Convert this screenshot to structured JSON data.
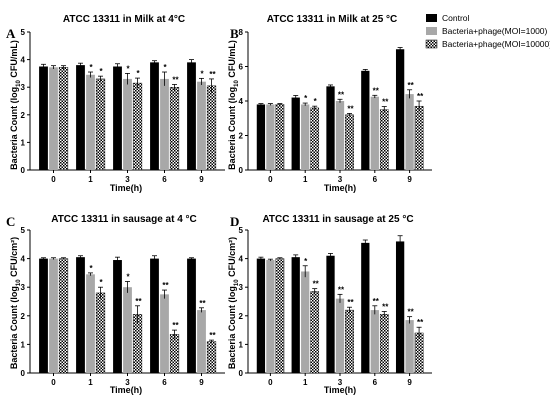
{
  "colors": {
    "control": "#000000",
    "phage_1000": "#a8a8a8",
    "phage_10000": "checker"
  },
  "legend": [
    {
      "label": "Control",
      "style": "control"
    },
    {
      "label": "Bacteria+phage(MOI=1000)",
      "style": "phage_1000"
    },
    {
      "label": "Bacteria+phage(MOI=10000)",
      "style": "phage_10000"
    }
  ],
  "chart_data": [
    {
      "type": "bar",
      "panel_label": "A",
      "title": "ATCC 13311 in Milk at 4°C",
      "xlabel": "Time(h)",
      "ylabel_main": "Bacteria Count (log",
      "ylabel_sub": "10",
      "ylabel_unit": " CFU/mL)",
      "categories": [
        "0",
        "1",
        "3",
        "6",
        "9"
      ],
      "ylim": [
        0,
        5
      ],
      "yticks": [
        0,
        1,
        2,
        3,
        4,
        5
      ],
      "series": [
        {
          "name": "Control",
          "values": [
            3.75,
            3.8,
            3.75,
            3.9,
            3.9
          ],
          "errors": [
            0.08,
            0.07,
            0.1,
            0.06,
            0.1
          ],
          "sig": [
            "",
            "",
            "",
            "",
            ""
          ]
        },
        {
          "name": "Bacteria+phage(MOI=1000)",
          "values": [
            3.72,
            3.45,
            3.3,
            3.3,
            3.2
          ],
          "errors": [
            0.06,
            0.1,
            0.2,
            0.25,
            0.12
          ],
          "sig": [
            "",
            "*",
            "*",
            "*",
            "*"
          ]
        },
        {
          "name": "Bacteria+phage(MOI=10000)",
          "values": [
            3.72,
            3.3,
            3.15,
            3.0,
            3.05
          ],
          "errors": [
            0.06,
            0.1,
            0.18,
            0.1,
            0.25
          ],
          "sig": [
            "",
            "*",
            "*",
            "**",
            "**"
          ]
        }
      ]
    },
    {
      "type": "bar",
      "panel_label": "B",
      "title": "ATCC 13311 in Milk at 25 °C",
      "xlabel": "Time(h)",
      "ylabel_main": "Bacteria Count (log",
      "ylabel_sub": "10",
      "ylabel_unit": " CFU/mL)",
      "categories": [
        "0",
        "1",
        "3",
        "6",
        "9"
      ],
      "ylim": [
        0,
        8
      ],
      "yticks": [
        0,
        2,
        4,
        6,
        8
      ],
      "series": [
        {
          "name": "Control",
          "values": [
            3.8,
            4.2,
            4.85,
            5.75,
            7.0
          ],
          "errors": [
            0.05,
            0.12,
            0.08,
            0.08,
            0.1
          ],
          "sig": [
            "",
            "",
            "",
            "",
            ""
          ]
        },
        {
          "name": "Bacteria+phage(MOI=1000)",
          "values": [
            3.8,
            3.8,
            4.0,
            4.25,
            4.4
          ],
          "errors": [
            0.05,
            0.08,
            0.1,
            0.08,
            0.25
          ],
          "sig": [
            "",
            "*",
            "**",
            "**",
            "**"
          ]
        },
        {
          "name": "Bacteria+phage(MOI=10000)",
          "values": [
            3.8,
            3.6,
            3.2,
            3.5,
            3.7
          ],
          "errors": [
            0.05,
            0.1,
            0.08,
            0.18,
            0.3
          ],
          "sig": [
            "",
            "*",
            "**",
            "**",
            "**"
          ]
        }
      ]
    },
    {
      "type": "bar",
      "panel_label": "C",
      "title": "ATCC 13311 in sausage at 4 °C",
      "xlabel": "Time(h)",
      "ylabel_main": "Bacteria Count (log",
      "ylabel_sub": "10",
      "ylabel_unit": " CFU/cm²)",
      "categories": [
        "0",
        "1",
        "3",
        "6",
        "9"
      ],
      "ylim": [
        0,
        5
      ],
      "yticks": [
        0,
        1,
        2,
        3,
        4,
        5
      ],
      "series": [
        {
          "name": "Control",
          "values": [
            4.0,
            4.05,
            3.95,
            4.0,
            4.0
          ],
          "errors": [
            0.03,
            0.05,
            0.1,
            0.1,
            0.03
          ],
          "sig": [
            "",
            "",
            "",
            "",
            ""
          ]
        },
        {
          "name": "Bacteria+phage(MOI=1000)",
          "values": [
            4.0,
            3.45,
            3.0,
            2.75,
            2.2
          ],
          "errors": [
            0.03,
            0.05,
            0.2,
            0.15,
            0.08
          ],
          "sig": [
            "",
            "*",
            "*",
            "**",
            "**"
          ]
        },
        {
          "name": "Bacteria+phage(MOI=10000)",
          "values": [
            4.0,
            2.8,
            2.05,
            1.35,
            1.1
          ],
          "errors": [
            0.03,
            0.2,
            0.3,
            0.15,
            0.05
          ],
          "sig": [
            "",
            "*",
            "**",
            "**",
            "**"
          ]
        }
      ]
    },
    {
      "type": "bar",
      "panel_label": "D",
      "title": "ATCC 13311 in sausage at 25 °C",
      "xlabel": "Time(h)",
      "ylabel_main": "Bacteria Count (log",
      "ylabel_sub": "10",
      "ylabel_unit": " CFU/cm²)",
      "categories": [
        "0",
        "1",
        "3",
        "6",
        "9"
      ],
      "ylim": [
        0,
        5
      ],
      "yticks": [
        0,
        1,
        2,
        3,
        4,
        5
      ],
      "series": [
        {
          "name": "Control",
          "values": [
            4.0,
            4.05,
            4.1,
            4.55,
            4.6
          ],
          "errors": [
            0.05,
            0.08,
            0.08,
            0.1,
            0.2
          ],
          "sig": [
            "",
            "",
            "",
            "",
            ""
          ]
        },
        {
          "name": "Bacteria+phage(MOI=1000)",
          "values": [
            3.95,
            3.55,
            2.6,
            2.2,
            1.85
          ],
          "errors": [
            0.03,
            0.2,
            0.15,
            0.15,
            0.12
          ],
          "sig": [
            "",
            "*",
            "**",
            "**",
            "**"
          ]
        },
        {
          "name": "Bacteria+phage(MOI=10000)",
          "values": [
            4.0,
            2.85,
            2.2,
            2.05,
            1.4
          ],
          "errors": [
            0.03,
            0.1,
            0.1,
            0.1,
            0.2
          ],
          "sig": [
            "",
            "**",
            "**",
            "**",
            "**"
          ]
        }
      ]
    }
  ]
}
